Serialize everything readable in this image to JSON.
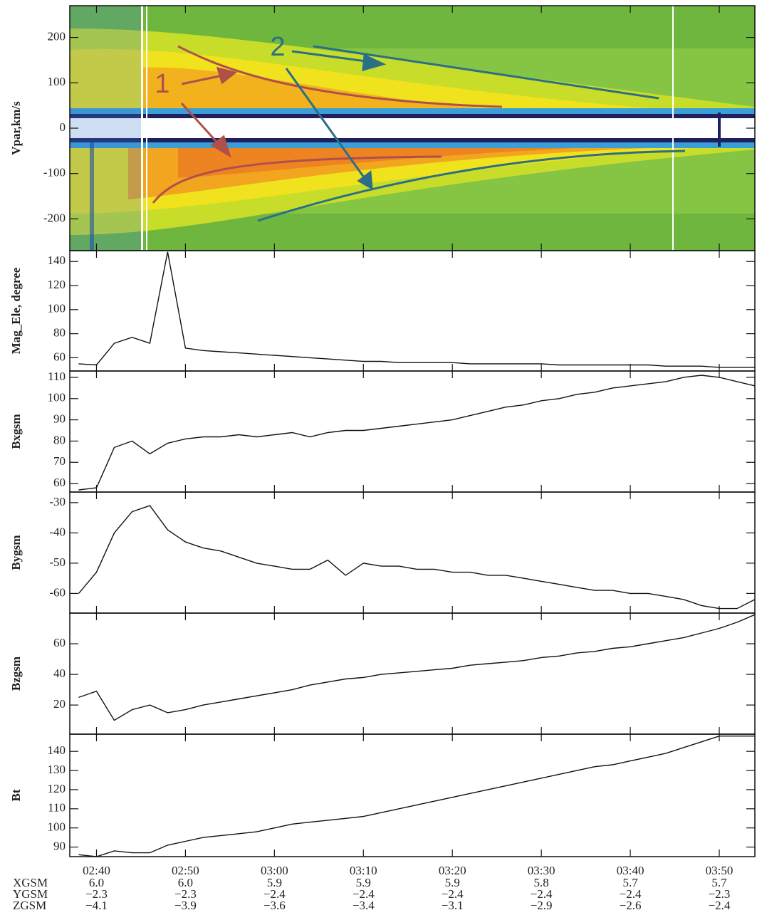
{
  "chart_data": [
    {
      "type": "spectrogram",
      "ylabel": "Vpar,km/s",
      "xlim": [
        "02:37",
        "03:54"
      ],
      "ylim": [
        -270,
        270
      ],
      "yticks": [
        -200,
        -100,
        0,
        100,
        200
      ],
      "annotations": [
        {
          "text": "1"
        },
        {
          "text": "2"
        }
      ]
    },
    {
      "type": "line",
      "ylabel": "Mag_Ele, degree",
      "color": "#111",
      "xlim": [
        "02:37",
        "03:54"
      ],
      "ylim": [
        49,
        149
      ],
      "yticks": [
        60,
        80,
        100,
        120,
        140
      ],
      "x": [
        "02:38",
        "02:40",
        "02:42",
        "02:44",
        "02:46",
        "02:48",
        "02:50",
        "02:52",
        "02:54",
        "02:56",
        "02:58",
        "03:00",
        "03:02",
        "03:04",
        "03:06",
        "03:08",
        "03:10",
        "03:12",
        "03:14",
        "03:16",
        "03:18",
        "03:20",
        "03:22",
        "03:24",
        "03:26",
        "03:28",
        "03:30",
        "03:32",
        "03:34",
        "03:36",
        "03:38",
        "03:40",
        "03:42",
        "03:44",
        "03:46",
        "03:48",
        "03:50",
        "03:52",
        "03:54"
      ],
      "values": [
        55,
        54,
        72,
        77,
        72,
        148,
        68,
        66,
        65,
        64,
        63,
        62,
        61,
        60,
        59,
        58,
        57,
        57,
        56,
        56,
        56,
        56,
        55,
        55,
        55,
        55,
        55,
        54,
        54,
        54,
        54,
        54,
        54,
        53,
        53,
        53,
        52,
        52,
        52
      ]
    },
    {
      "type": "line",
      "ylabel": "Bxgsm",
      "color": "#111",
      "xlim": [
        "02:37",
        "03:54"
      ],
      "ylim": [
        56,
        113
      ],
      "yticks": [
        60,
        70,
        80,
        90,
        100,
        110
      ],
      "x": [
        "02:38",
        "02:40",
        "02:42",
        "02:44",
        "02:46",
        "02:48",
        "02:50",
        "02:52",
        "02:54",
        "02:56",
        "02:58",
        "03:00",
        "03:02",
        "03:04",
        "03:06",
        "03:08",
        "03:10",
        "03:12",
        "03:14",
        "03:16",
        "03:18",
        "03:20",
        "03:22",
        "03:24",
        "03:26",
        "03:28",
        "03:30",
        "03:32",
        "03:34",
        "03:36",
        "03:38",
        "03:40",
        "03:42",
        "03:44",
        "03:46",
        "03:48",
        "03:50",
        "03:52",
        "03:54"
      ],
      "values": [
        57,
        58,
        77,
        80,
        74,
        79,
        81,
        82,
        82,
        83,
        82,
        83,
        84,
        82,
        84,
        85,
        85,
        86,
        87,
        88,
        89,
        90,
        92,
        94,
        96,
        97,
        99,
        100,
        102,
        103,
        105,
        106,
        107,
        108,
        110,
        111,
        110,
        108,
        106
      ]
    },
    {
      "type": "line",
      "ylabel": "Bygsm",
      "color": "#111",
      "xlim": [
        "02:37",
        "03:54"
      ],
      "ylim": [
        -66.5,
        -26.5
      ],
      "yticks": [
        -60,
        -50,
        -40,
        -30
      ],
      "x": [
        "02:38",
        "02:40",
        "02:42",
        "02:44",
        "02:46",
        "02:48",
        "02:50",
        "02:52",
        "02:54",
        "02:56",
        "02:58",
        "03:00",
        "03:02",
        "03:04",
        "03:06",
        "03:08",
        "03:10",
        "03:12",
        "03:14",
        "03:16",
        "03:18",
        "03:20",
        "03:22",
        "03:24",
        "03:26",
        "03:28",
        "03:30",
        "03:32",
        "03:34",
        "03:36",
        "03:38",
        "03:40",
        "03:42",
        "03:44",
        "03:46",
        "03:48",
        "03:50",
        "03:52",
        "03:54"
      ],
      "values": [
        -60,
        -53,
        -40,
        -33,
        -31,
        -39,
        -43,
        -45,
        -46,
        -48,
        -50,
        -51,
        -52,
        -52,
        -49,
        -54,
        -50,
        -51,
        -51,
        -52,
        -52,
        -53,
        -53,
        -54,
        -54,
        -55,
        -56,
        -57,
        -58,
        -59,
        -59,
        -60,
        -60,
        -61,
        -62,
        -64,
        -65,
        -65,
        -62
      ]
    },
    {
      "type": "line",
      "ylabel": "Bzgsm",
      "color": "#111",
      "xlim": [
        "02:37",
        "03:54"
      ],
      "ylim": [
        1,
        80
      ],
      "yticks": [
        20,
        40,
        60
      ],
      "x": [
        "02:38",
        "02:40",
        "02:42",
        "02:44",
        "02:46",
        "02:48",
        "02:50",
        "02:52",
        "02:54",
        "02:56",
        "02:58",
        "03:00",
        "03:02",
        "03:04",
        "03:06",
        "03:08",
        "03:10",
        "03:12",
        "03:14",
        "03:16",
        "03:18",
        "03:20",
        "03:22",
        "03:24",
        "03:26",
        "03:28",
        "03:30",
        "03:32",
        "03:34",
        "03:36",
        "03:38",
        "03:40",
        "03:42",
        "03:44",
        "03:46",
        "03:48",
        "03:50",
        "03:52",
        "03:54"
      ],
      "values": [
        25,
        29,
        10,
        17,
        20,
        15,
        17,
        20,
        22,
        24,
        26,
        28,
        30,
        33,
        35,
        37,
        38,
        40,
        41,
        42,
        43,
        44,
        46,
        47,
        48,
        49,
        51,
        52,
        54,
        55,
        57,
        58,
        60,
        62,
        64,
        67,
        70,
        74,
        79
      ]
    },
    {
      "type": "line",
      "ylabel": "Bt",
      "color": "#111",
      "xlim": [
        "02:37",
        "03:54"
      ],
      "ylim": [
        85,
        149
      ],
      "yticks": [
        90,
        100,
        110,
        120,
        130,
        140
      ],
      "x": [
        "02:38",
        "02:40",
        "02:42",
        "02:44",
        "02:46",
        "02:48",
        "02:50",
        "02:52",
        "02:54",
        "02:56",
        "02:58",
        "03:00",
        "03:02",
        "03:04",
        "03:06",
        "03:08",
        "03:10",
        "03:12",
        "03:14",
        "03:16",
        "03:18",
        "03:20",
        "03:22",
        "03:24",
        "03:26",
        "03:28",
        "03:30",
        "03:32",
        "03:34",
        "03:36",
        "03:38",
        "03:40",
        "03:42",
        "03:44",
        "03:46",
        "03:48",
        "03:50",
        "03:52",
        "03:54"
      ],
      "values": [
        86,
        85,
        88,
        87,
        87,
        91,
        93,
        95,
        96,
        97,
        98,
        100,
        102,
        103,
        104,
        105,
        106,
        108,
        110,
        112,
        114,
        116,
        118,
        120,
        122,
        124,
        126,
        128,
        130,
        132,
        133,
        135,
        137,
        139,
        142,
        145,
        148,
        148,
        148
      ],
      "xticks": [
        "02:40",
        "02:50",
        "03:00",
        "03:10",
        "03:20",
        "03:30",
        "03:40",
        "03:50"
      ],
      "ephemeris": [
        {
          "name": "XGSM",
          "values": [
            "6.0",
            "6.0",
            "5.9",
            "5.9",
            "5.9",
            "5.8",
            "5.7",
            "5.7"
          ]
        },
        {
          "name": "YGSM",
          "values": [
            "−2.3",
            "−2.3",
            "−2.4",
            "−2.4",
            "−2.4",
            "−2.4",
            "−2.4",
            "−2.3"
          ]
        },
        {
          "name": "ZGSM",
          "values": [
            "−4.1",
            "−3.9",
            "−3.6",
            "−3.4",
            "−3.1",
            "−2.9",
            "−2.6",
            "−2.4"
          ]
        }
      ]
    }
  ]
}
